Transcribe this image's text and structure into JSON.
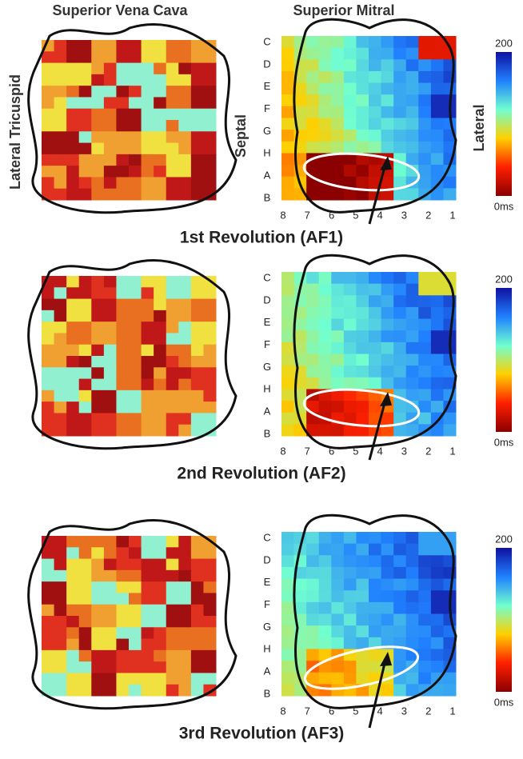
{
  "header": {
    "left": "Superior Vena Cava",
    "right": "Superior Mitral"
  },
  "side_labels": {
    "left": "Lateral Tricuspid",
    "septal": "Septal",
    "lateral": "Lateral"
  },
  "row_labels": [
    "C",
    "D",
    "E",
    "F",
    "G",
    "H",
    "A",
    "B"
  ],
  "col_labels": [
    8,
    7,
    6,
    5,
    4,
    3,
    2,
    1
  ],
  "scale": {
    "max": 200,
    "min_label": "0ms"
  },
  "panels": [
    {
      "caption": "1st Revolution (AF1)"
    },
    {
      "caption": "2nd Revolution (AF2)"
    },
    {
      "caption": "3rd Revolution (AF3)"
    }
  ]
}
